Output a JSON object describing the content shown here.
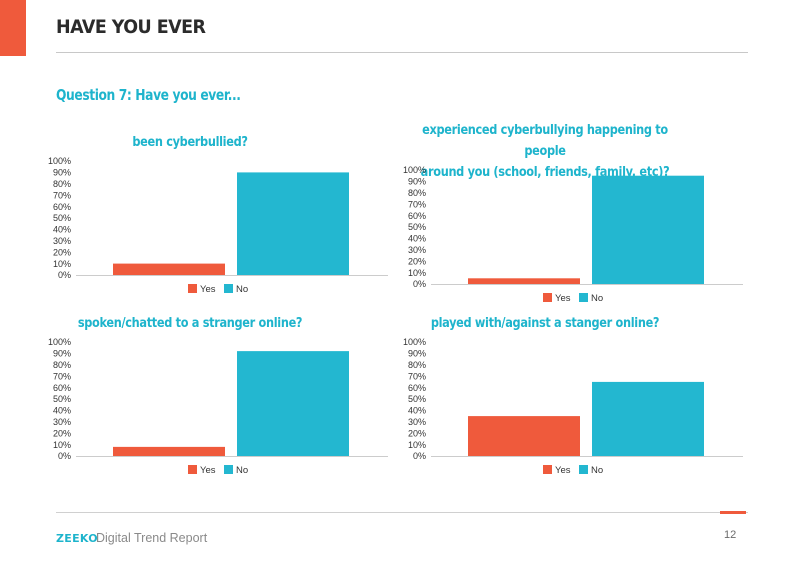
{
  "page": {
    "title": "HAVE YOU EVER",
    "question": "Question 7: Have you ever...",
    "accent_color": "#ef5a3c",
    "question_color": "#1eb4cc",
    "chart_title_color": "#1eb4cc"
  },
  "footer": {
    "brand": "ZEEKO",
    "brand_color": "#1eb4cc",
    "report_name": "Digital Trend Report",
    "page_number": "12"
  },
  "chart_data": [
    {
      "type": "bar",
      "title_lines": [
        "been cyberbullied?"
      ],
      "categories": [
        ""
      ],
      "series": [
        {
          "name": "Yes",
          "color": "#ef5a3c",
          "values": [
            10
          ]
        },
        {
          "name": "No",
          "color": "#23b7d0",
          "values": [
            90
          ]
        }
      ],
      "ylim": [
        0,
        100
      ],
      "y_ticks": [
        "0%",
        "10%",
        "20%",
        "30%",
        "40%",
        "50%",
        "60%",
        "70%",
        "80%",
        "90%",
        "100%"
      ],
      "legend_position": "bottom",
      "grid": false
    },
    {
      "type": "bar",
      "title_lines": [
        "experienced cyberbullying happening to people",
        "around you (school, friends, family, etc)?"
      ],
      "categories": [
        ""
      ],
      "series": [
        {
          "name": "Yes",
          "color": "#ef5a3c",
          "values": [
            5
          ]
        },
        {
          "name": "No",
          "color": "#23b7d0",
          "values": [
            95
          ]
        }
      ],
      "ylim": [
        0,
        100
      ],
      "y_ticks": [
        "0%",
        "10%",
        "20%",
        "30%",
        "40%",
        "50%",
        "60%",
        "70%",
        "80%",
        "90%",
        "100%"
      ],
      "legend_position": "bottom",
      "grid": false
    },
    {
      "type": "bar",
      "title_lines": [
        "spoken/chatted to a stranger online?"
      ],
      "categories": [
        ""
      ],
      "series": [
        {
          "name": "Yes",
          "color": "#ef5a3c",
          "values": [
            8
          ]
        },
        {
          "name": "No",
          "color": "#23b7d0",
          "values": [
            92
          ]
        }
      ],
      "ylim": [
        0,
        100
      ],
      "y_ticks": [
        "0%",
        "10%",
        "20%",
        "30%",
        "40%",
        "50%",
        "60%",
        "70%",
        "80%",
        "90%",
        "100%"
      ],
      "legend_position": "bottom",
      "grid": false
    },
    {
      "type": "bar",
      "title_lines": [
        "played with/against a stanger online?"
      ],
      "categories": [
        ""
      ],
      "series": [
        {
          "name": "Yes",
          "color": "#ef5a3c",
          "values": [
            35
          ]
        },
        {
          "name": "No",
          "color": "#23b7d0",
          "values": [
            65
          ]
        }
      ],
      "ylim": [
        0,
        100
      ],
      "y_ticks": [
        "0%",
        "10%",
        "20%",
        "30%",
        "40%",
        "50%",
        "60%",
        "70%",
        "80%",
        "90%",
        "100%"
      ],
      "legend_position": "bottom",
      "grid": false
    }
  ]
}
